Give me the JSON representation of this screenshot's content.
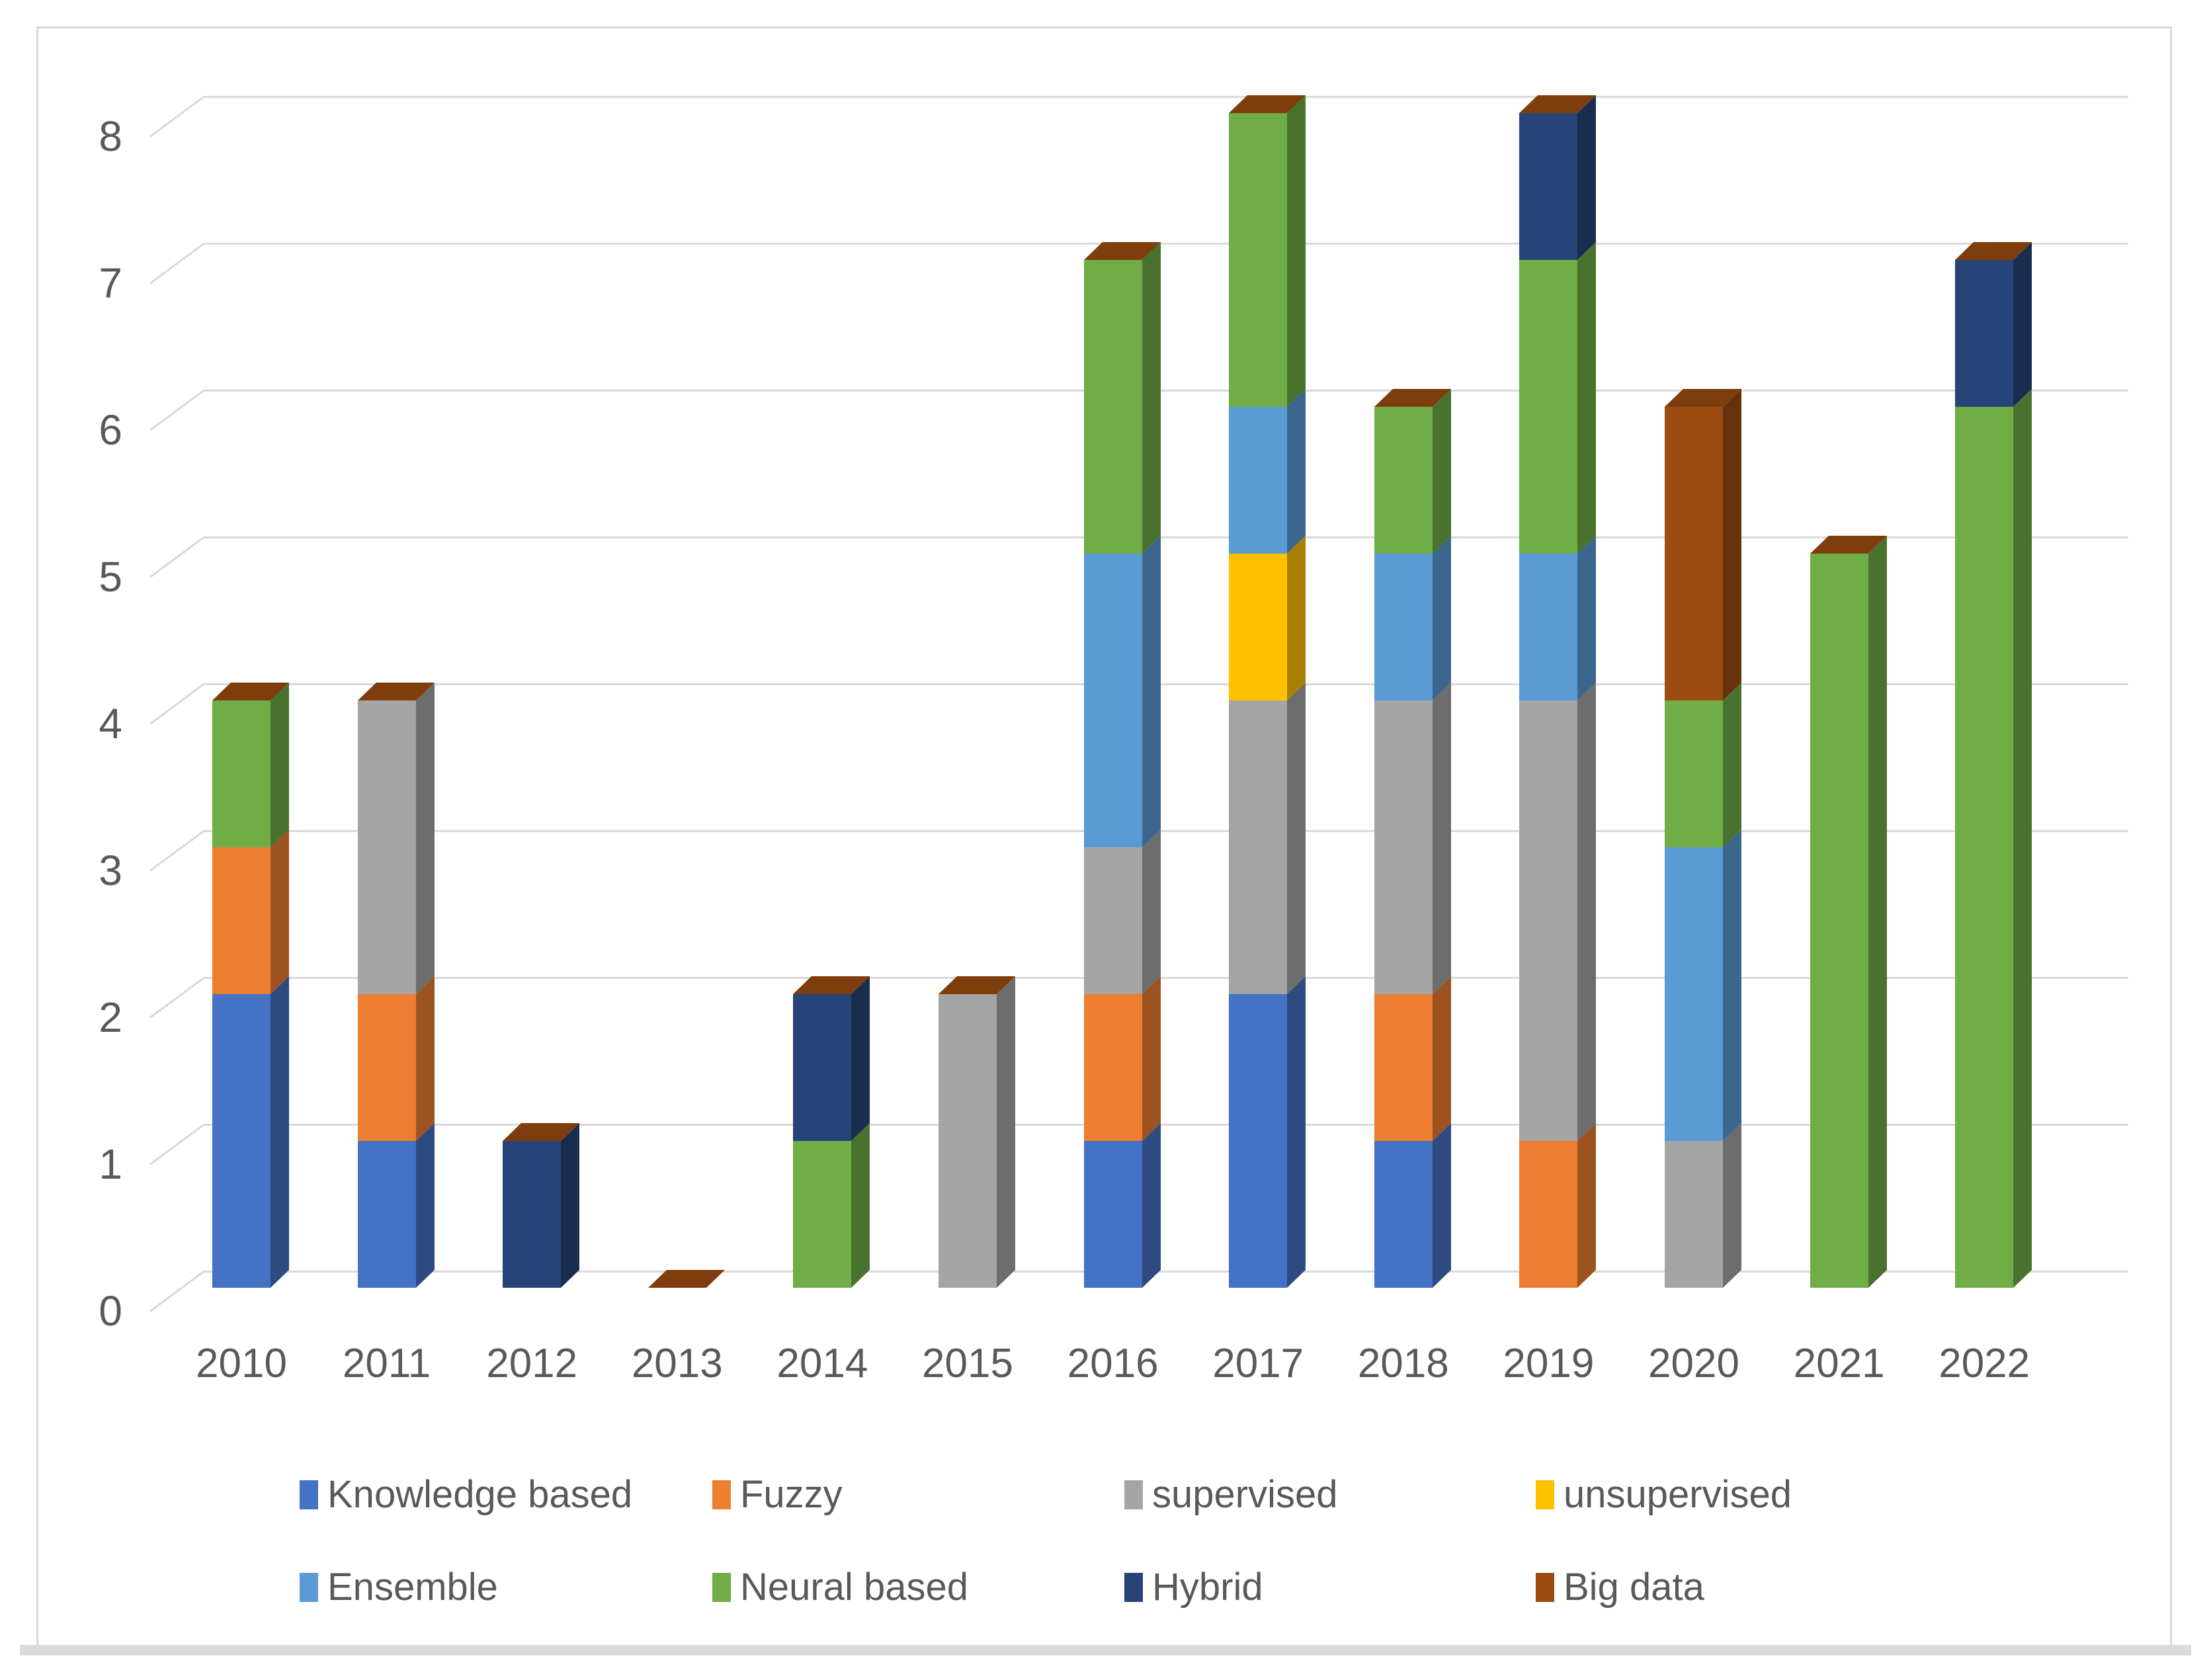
{
  "figure": {
    "background": "#FFFFFF",
    "border_color": "#D9D9D9",
    "gridline_color": "#D9D9D9",
    "text_color": "#595959"
  },
  "chart_data": {
    "type": "bar",
    "variant": "3d-stacked-column",
    "title": "",
    "xlabel": "",
    "ylabel": "",
    "ylim": [
      0,
      8
    ],
    "yticks": [
      "0",
      "1",
      "2",
      "3",
      "4",
      "5",
      "6",
      "7",
      "8"
    ],
    "grid": true,
    "legend_position": "bottom",
    "categories": [
      "2010",
      "2011",
      "2012",
      "2013",
      "2014",
      "2015",
      "2016",
      "2017",
      "2018",
      "2019",
      "2020",
      "2021",
      "2022"
    ],
    "series": [
      {
        "name": "Knowledge based",
        "color": "#4472C4",
        "values": [
          2,
          1,
          0,
          0,
          0,
          0,
          1,
          2,
          1,
          0,
          0,
          0,
          0
        ]
      },
      {
        "name": "Fuzzy",
        "color": "#ED7D31",
        "values": [
          1,
          1,
          0,
          0,
          0,
          0,
          1,
          0,
          1,
          1,
          0,
          0,
          0
        ]
      },
      {
        "name": "supervised",
        "color": "#A5A5A5",
        "values": [
          0,
          2,
          0,
          0,
          0,
          2,
          1,
          2,
          2,
          3,
          1,
          0,
          0
        ]
      },
      {
        "name": "unsupervised",
        "color": "#FFC000",
        "values": [
          0,
          0,
          0,
          0,
          0,
          0,
          0,
          1,
          0,
          0,
          0,
          0,
          0
        ]
      },
      {
        "name": "Ensemble",
        "color": "#5B9BD5",
        "values": [
          0,
          0,
          0,
          0,
          0,
          0,
          2,
          1,
          1,
          1,
          2,
          0,
          0
        ]
      },
      {
        "name": "Neural based",
        "color": "#70AD47",
        "values": [
          1,
          0,
          0,
          0,
          1,
          0,
          2,
          2,
          1,
          2,
          1,
          5,
          6
        ]
      },
      {
        "name": "Hybrid",
        "color": "#264478",
        "values": [
          0,
          0,
          1,
          0,
          1,
          0,
          0,
          0,
          0,
          1,
          0,
          0,
          1
        ]
      },
      {
        "name": "Big data",
        "color": "#9C4C10",
        "values": [
          0,
          0,
          0,
          0,
          0,
          0,
          0,
          0,
          0,
          0,
          2,
          0,
          0
        ]
      }
    ],
    "stack_totals": [
      4,
      4,
      1,
      0,
      2,
      2,
      7,
      8,
      6,
      8,
      6,
      5,
      7
    ],
    "legend_rows": [
      [
        "Knowledge based",
        "Fuzzy",
        "supervised",
        "unsupervised"
      ],
      [
        "Ensemble",
        "Neural based",
        "Hybrid",
        "Big data"
      ]
    ]
  }
}
